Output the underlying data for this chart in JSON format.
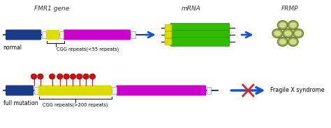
{
  "bg_color": "#ffffff",
  "col1_header": "FMR1 gene",
  "col2_header": "mRNA",
  "col3_header": "FRMP",
  "header_fontsize": 6.5,
  "gene_blue": "#1a3a8a",
  "gene_yellow": "#dddd00",
  "gene_magenta": "#cc00cc",
  "gene_white": "#ffffff",
  "mrna_green": "#33bb00",
  "mrna_yellow": "#dddd00",
  "mrna_strand_color": "#333333",
  "fmrp_outer": "#aabb55",
  "fmrp_inner": "#ccdd88",
  "arrow_blue": "#1155cc",
  "methylation_red": "#cc1111",
  "cross_red": "#dd2222",
  "normal_label": "normal",
  "mutation_label": "full mutation",
  "cgg_normal_label": "CGG repeats(<55 repeats)",
  "cgg_mutation_label": "CGG repeats(>200 repeats)",
  "fragile_label": "Fragile X syndrome",
  "line_color": "#444488"
}
